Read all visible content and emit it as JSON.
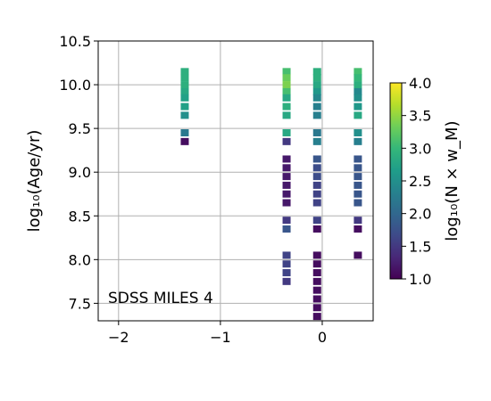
{
  "chart_data": {
    "type": "heatmap",
    "title": "",
    "annotation": "SDSS MILES 4",
    "xlabel": "",
    "ylabel": "log₁₀(Age/yr)",
    "xlim": [
      -2.2,
      0.5
    ],
    "ylim": [
      7.3,
      10.5
    ],
    "xticks": [
      -2,
      -1,
      0
    ],
    "xtick_labels": [
      "−2",
      "−1",
      "0"
    ],
    "yticks": [
      7.5,
      8.0,
      8.5,
      9.0,
      9.5,
      10.0,
      10.5
    ],
    "ytick_labels": [
      "7.5",
      "8.0",
      "8.5",
      "9.0",
      "9.5",
      "10.0",
      "10.5"
    ],
    "grid": true,
    "colorbar": {
      "label": "log₁₀(N × w_M)",
      "range": [
        1.0,
        4.0
      ],
      "ticks": [
        1.0,
        1.5,
        2.0,
        2.5,
        3.0,
        3.5,
        4.0
      ],
      "tick_labels": [
        "1.0",
        "1.5",
        "2.0",
        "2.5",
        "3.0",
        "3.5",
        "4.0"
      ],
      "colormap": "viridis"
    },
    "columns": [
      {
        "x": -1.35,
        "points": [
          {
            "age": 10.15,
            "value": 2.9
          },
          {
            "age": 10.08,
            "value": 2.9
          },
          {
            "age": 10.0,
            "value": 2.9
          },
          {
            "age": 9.92,
            "value": 2.8
          },
          {
            "age": 9.85,
            "value": 2.7
          },
          {
            "age": 9.75,
            "value": 2.7
          },
          {
            "age": 9.65,
            "value": 2.5
          },
          {
            "age": 9.45,
            "value": 2.2
          },
          {
            "age": 9.35,
            "value": 1.1
          }
        ]
      },
      {
        "x": -0.35,
        "points": [
          {
            "age": 10.15,
            "value": 3.1
          },
          {
            "age": 10.08,
            "value": 3.3
          },
          {
            "age": 10.0,
            "value": 3.4
          },
          {
            "age": 9.92,
            "value": 3.1
          },
          {
            "age": 9.85,
            "value": 2.8
          },
          {
            "age": 9.75,
            "value": 2.9
          },
          {
            "age": 9.65,
            "value": 2.8
          },
          {
            "age": 9.45,
            "value": 2.8
          },
          {
            "age": 9.35,
            "value": 1.5
          },
          {
            "age": 9.15,
            "value": 1.2
          },
          {
            "age": 9.05,
            "value": 1.2
          },
          {
            "age": 8.95,
            "value": 1.2
          },
          {
            "age": 8.85,
            "value": 1.2
          },
          {
            "age": 8.75,
            "value": 1.2
          },
          {
            "age": 8.65,
            "value": 1.2
          },
          {
            "age": 8.45,
            "value": 1.5
          },
          {
            "age": 8.35,
            "value": 1.8
          },
          {
            "age": 8.05,
            "value": 1.6
          },
          {
            "age": 7.95,
            "value": 1.6
          },
          {
            "age": 7.85,
            "value": 1.6
          },
          {
            "age": 7.75,
            "value": 1.5
          }
        ]
      },
      {
        "x": -0.05,
        "points": [
          {
            "age": 10.15,
            "value": 2.9
          },
          {
            "age": 10.08,
            "value": 2.9
          },
          {
            "age": 10.0,
            "value": 2.8
          },
          {
            "age": 9.92,
            "value": 2.6
          },
          {
            "age": 9.85,
            "value": 2.4
          },
          {
            "age": 9.75,
            "value": 2.3
          },
          {
            "age": 9.65,
            "value": 2.3
          },
          {
            "age": 9.45,
            "value": 2.2
          },
          {
            "age": 9.35,
            "value": 2.3
          },
          {
            "age": 9.15,
            "value": 1.8
          },
          {
            "age": 9.05,
            "value": 1.7
          },
          {
            "age": 8.95,
            "value": 1.7
          },
          {
            "age": 8.85,
            "value": 1.6
          },
          {
            "age": 8.75,
            "value": 1.6
          },
          {
            "age": 8.65,
            "value": 1.6
          },
          {
            "age": 8.45,
            "value": 1.6
          },
          {
            "age": 8.35,
            "value": 1.1
          },
          {
            "age": 8.05,
            "value": 1.1
          },
          {
            "age": 7.95,
            "value": 1.1
          },
          {
            "age": 7.85,
            "value": 1.1
          },
          {
            "age": 7.75,
            "value": 1.1
          },
          {
            "age": 7.65,
            "value": 1.1
          },
          {
            "age": 7.55,
            "value": 1.1
          },
          {
            "age": 7.45,
            "value": 1.1
          },
          {
            "age": 7.35,
            "value": 1.1
          }
        ]
      },
      {
        "x": 0.35,
        "points": [
          {
            "age": 10.15,
            "value": 3.1
          },
          {
            "age": 10.08,
            "value": 3.0
          },
          {
            "age": 10.0,
            "value": 2.9
          },
          {
            "age": 9.92,
            "value": 2.4
          },
          {
            "age": 9.85,
            "value": 2.5
          },
          {
            "age": 9.75,
            "value": 2.6
          },
          {
            "age": 9.65,
            "value": 2.8
          },
          {
            "age": 9.45,
            "value": 2.5
          },
          {
            "age": 9.35,
            "value": 2.3
          },
          {
            "age": 9.15,
            "value": 1.8
          },
          {
            "age": 9.05,
            "value": 1.8
          },
          {
            "age": 8.95,
            "value": 1.8
          },
          {
            "age": 8.85,
            "value": 1.8
          },
          {
            "age": 8.75,
            "value": 1.8
          },
          {
            "age": 8.65,
            "value": 1.8
          },
          {
            "age": 8.45,
            "value": 1.5
          },
          {
            "age": 8.35,
            "value": 1.1
          },
          {
            "age": 8.05,
            "value": 1.1
          }
        ]
      }
    ]
  }
}
